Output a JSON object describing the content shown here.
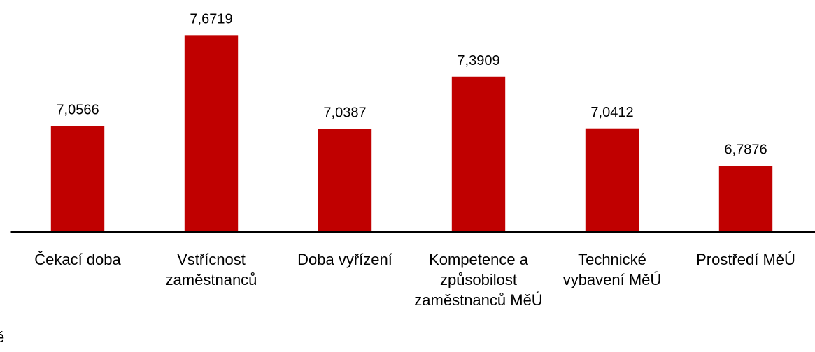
{
  "chart_data": {
    "type": "bar",
    "categories": [
      "Čekací doba",
      "Vstřícnost zaměstnanců",
      "Doba vyřízení",
      "Kompetence a způsobilost zaměstnanců MěÚ",
      "Technické vybavení MěÚ",
      "Prostředí MěÚ"
    ],
    "values": [
      7.0566,
      7.6719,
      7.0387,
      7.3909,
      7.0412,
      6.7876
    ],
    "value_labels": [
      "7,0566",
      "7,6719",
      "7,0387",
      "7,3909",
      "7,0412",
      "6,7876"
    ],
    "color": "#c00000",
    "ylim": [
      6.34,
      7.91
    ],
    "annotation": "ě"
  }
}
